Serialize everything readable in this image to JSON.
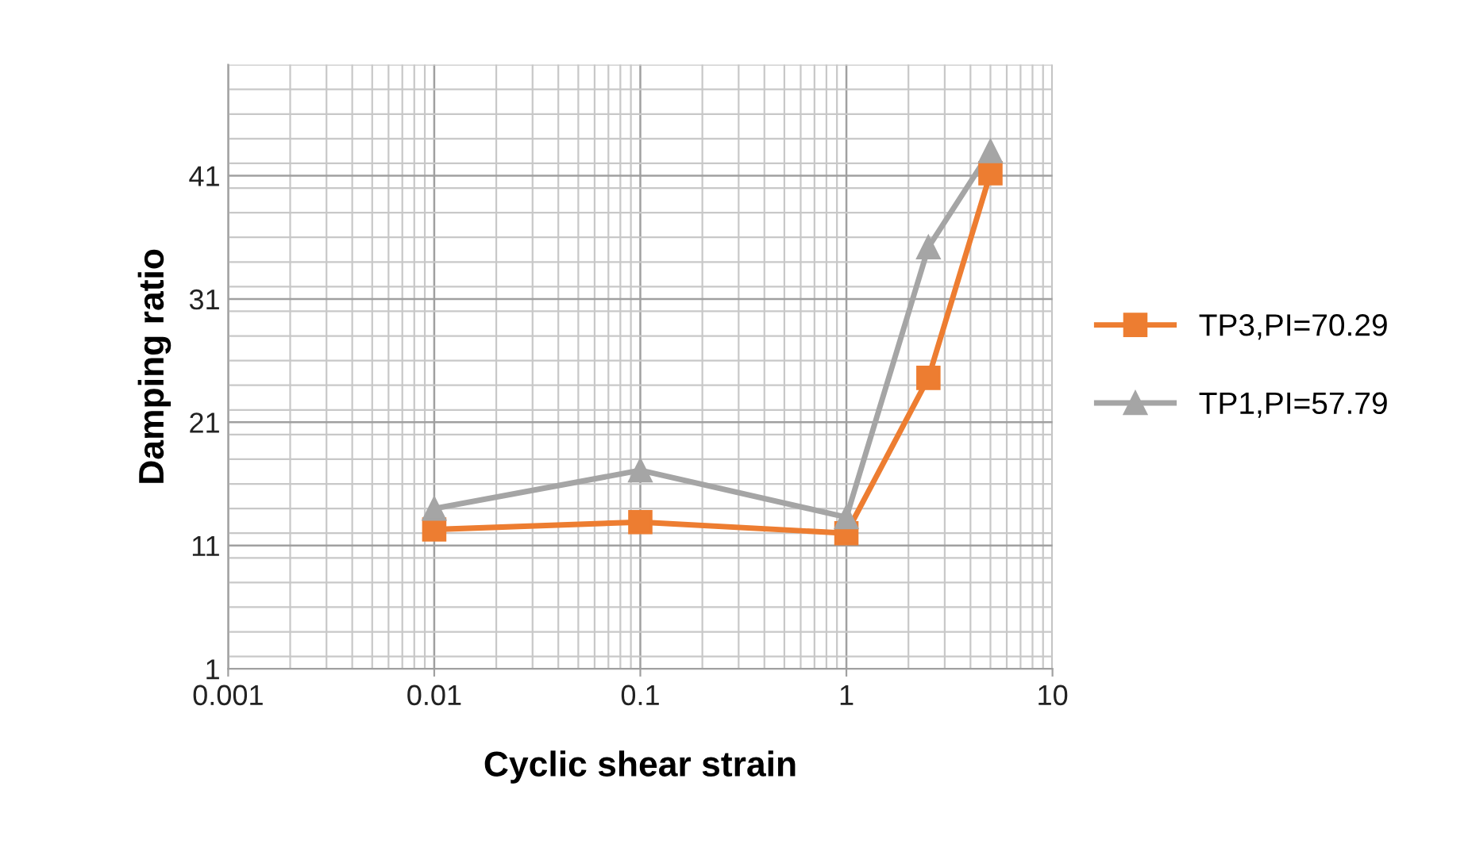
{
  "chart_data": {
    "type": "line",
    "xlabel": "Cyclic shear strain",
    "ylabel": "Damping ratio",
    "log": "x",
    "xlim": [
      0.001,
      10
    ],
    "xticks": [
      0.001,
      0.01,
      0.1,
      1,
      10
    ],
    "ylim": [
      1,
      50
    ],
    "yticks": [
      1,
      11,
      21,
      31,
      41
    ],
    "x": [
      0.01,
      0.1,
      1,
      2.5,
      5
    ],
    "series": [
      {
        "name": "TP3,PI=70.29",
        "color": "#ed7d31",
        "marker": "square",
        "values": [
          12.3,
          12.9,
          12.0,
          24.6,
          41.2
        ]
      },
      {
        "name": "TP1,PI=57.79",
        "color": "#a5a5a5",
        "marker": "triangle",
        "values": [
          14.0,
          17.1,
          13.3,
          35.2,
          43.0
        ]
      }
    ],
    "grid": true,
    "legend": "right",
    "line_style": "solid"
  }
}
